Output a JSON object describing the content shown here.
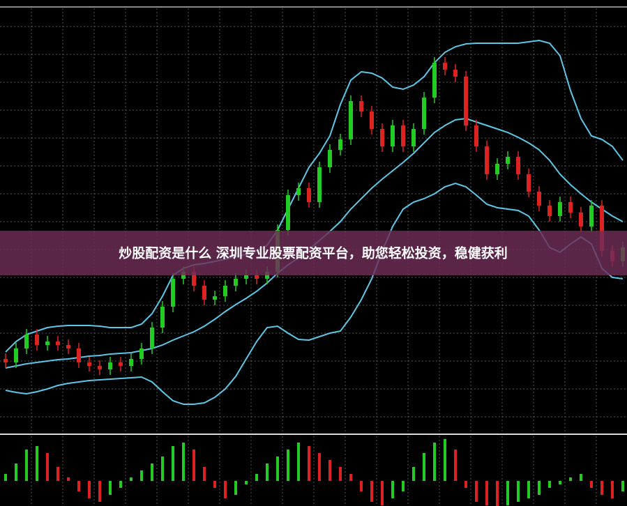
{
  "banner": {
    "text": "炒股配资是什么 深圳专业股票配资平台，助您轻松投资，稳健获利"
  },
  "chart_data": [
    {
      "type": "candlestick",
      "up_color": "#22cc22",
      "down_color": "#dd2222",
      "band_color": "#5bc8e8",
      "ylim": [
        0,
        610
      ],
      "open": [
        105,
        100,
        120,
        140,
        125,
        130,
        125,
        120,
        100,
        95,
        90,
        100,
        95,
        105,
        120,
        150,
        180,
        220,
        230,
        210,
        190,
        195,
        210,
        220,
        225,
        220,
        230,
        290,
        340,
        350,
        330,
        380,
        405,
        420,
        475,
        460,
        435,
        410,
        440,
        410,
        435,
        480,
        530,
        520,
        510,
        440,
        410,
        370,
        385,
        395,
        370,
        345,
        325,
        310,
        330,
        315,
        295,
        325,
        260,
        245
      ],
      "high": [
        113,
        128,
        148,
        148,
        138,
        138,
        133,
        128,
        108,
        103,
        108,
        108,
        113,
        128,
        158,
        188,
        228,
        238,
        238,
        218,
        203,
        218,
        228,
        233,
        233,
        238,
        298,
        348,
        358,
        358,
        388,
        413,
        428,
        483,
        483,
        468,
        443,
        448,
        448,
        443,
        488,
        538,
        538,
        528,
        518,
        448,
        418,
        393,
        403,
        403,
        378,
        353,
        333,
        338,
        338,
        323,
        333,
        333,
        268,
        273
      ],
      "low": [
        92,
        92,
        112,
        117,
        117,
        117,
        112,
        92,
        87,
        82,
        82,
        87,
        87,
        97,
        112,
        142,
        172,
        212,
        202,
        182,
        182,
        187,
        202,
        212,
        212,
        212,
        222,
        282,
        332,
        322,
        322,
        372,
        397,
        412,
        452,
        427,
        402,
        402,
        402,
        402,
        427,
        472,
        512,
        502,
        432,
        402,
        362,
        362,
        377,
        362,
        337,
        317,
        302,
        302,
        307,
        287,
        287,
        252,
        237,
        237
      ],
      "close": [
        100,
        120,
        140,
        125,
        130,
        125,
        120,
        100,
        95,
        90,
        100,
        95,
        105,
        120,
        150,
        180,
        220,
        230,
        210,
        190,
        195,
        210,
        220,
        225,
        220,
        230,
        290,
        340,
        350,
        330,
        380,
        405,
        420,
        475,
        460,
        435,
        410,
        440,
        410,
        435,
        480,
        530,
        520,
        510,
        440,
        410,
        370,
        385,
        395,
        370,
        345,
        325,
        310,
        330,
        315,
        295,
        325,
        260,
        245,
        265
      ],
      "bands": {
        "upper": [
          115,
          130,
          140,
          145,
          150,
          152,
          153,
          153,
          153,
          152,
          150,
          150,
          150,
          155,
          170,
          195,
          225,
          235,
          240,
          242,
          245,
          248,
          252,
          255,
          260,
          268,
          290,
          320,
          350,
          380,
          400,
          425,
          470,
          505,
          517,
          515,
          508,
          495,
          492,
          498,
          510,
          530,
          545,
          553,
          557,
          558,
          558,
          558,
          558,
          558,
          560,
          562,
          558,
          540,
          490,
          450,
          425,
          420,
          410,
          390
        ],
        "middle": [
          92,
          95,
          98,
          100,
          102,
          104,
          105,
          107,
          109,
          110,
          112,
          113,
          114,
          117,
          120,
          125,
          132,
          138,
          144,
          152,
          162,
          173,
          183,
          192,
          202,
          214,
          228,
          240,
          250,
          262,
          275,
          288,
          302,
          320,
          335,
          350,
          363,
          375,
          387,
          400,
          415,
          430,
          440,
          448,
          450,
          445,
          440,
          435,
          430,
          423,
          415,
          405,
          390,
          370,
          355,
          342,
          330,
          320,
          310,
          302
        ],
        "lower": [
          60,
          57,
          55,
          58,
          62,
          67,
          70,
          72,
          74,
          75,
          76,
          77,
          78,
          79,
          72,
          58,
          45,
          40,
          40,
          42,
          50,
          62,
          80,
          105,
          130,
          150,
          152,
          142,
          133,
          132,
          137,
          142,
          145,
          165,
          190,
          220,
          260,
          295,
          320,
          330,
          335,
          342,
          352,
          357,
          352,
          340,
          327,
          322,
          320,
          318,
          310,
          290,
          265,
          258,
          270,
          280,
          270,
          235,
          222,
          220
        ]
      }
    },
    {
      "type": "bar",
      "up_color": "#22cc22",
      "down_color": "#dd2222",
      "ylim": [
        -36,
        62
      ],
      "values": [
        10,
        25,
        45,
        50,
        40,
        20,
        5,
        -15,
        -25,
        -30,
        -20,
        -10,
        5,
        15,
        25,
        35,
        50,
        55,
        45,
        20,
        -10,
        -25,
        -20,
        -5,
        10,
        25,
        35,
        45,
        55,
        50,
        40,
        30,
        20,
        10,
        -15,
        -30,
        -35,
        -25,
        -15,
        20,
        40,
        55,
        60,
        45,
        -10,
        -30,
        -35,
        -40,
        -35,
        -30,
        -25,
        -20,
        -10,
        -5,
        5,
        10,
        -10,
        -20,
        -25,
        -15
      ]
    }
  ]
}
